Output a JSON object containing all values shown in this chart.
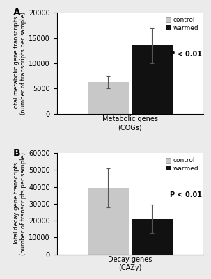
{
  "panel_A": {
    "title_label": "A",
    "ylabel": "Total metabolic gene transcripts\n(number of transcripts per sample)",
    "xlabel": "Metabolic genes\n(COGs)",
    "ylim": [
      0,
      20000
    ],
    "yticks": [
      0,
      5000,
      10000,
      15000,
      20000
    ],
    "bar_values": [
      6300,
      13500
    ],
    "bar_errors": [
      1200,
      3500
    ],
    "bar_colors": [
      "#c8c8c8",
      "#111111"
    ],
    "legend_labels": [
      "control",
      "warmed"
    ],
    "pvalue_text": "P < 0.01"
  },
  "panel_B": {
    "title_label": "B",
    "ylabel": "Total decay gene transcripts\n(number of transcripts per sample)",
    "xlabel": "Decay genes\n(CAZy)",
    "ylim": [
      0,
      60000
    ],
    "yticks": [
      0,
      10000,
      20000,
      30000,
      40000,
      50000,
      60000
    ],
    "bar_values": [
      39500,
      21000
    ],
    "bar_errors": [
      11500,
      8500
    ],
    "bar_colors": [
      "#c8c8c8",
      "#111111"
    ],
    "legend_labels": [
      "control",
      "warmed"
    ],
    "pvalue_text": "P < 0.01"
  },
  "bar_width": 0.28,
  "background_color": "#ebebeb",
  "plot_bg_color": "#ffffff"
}
